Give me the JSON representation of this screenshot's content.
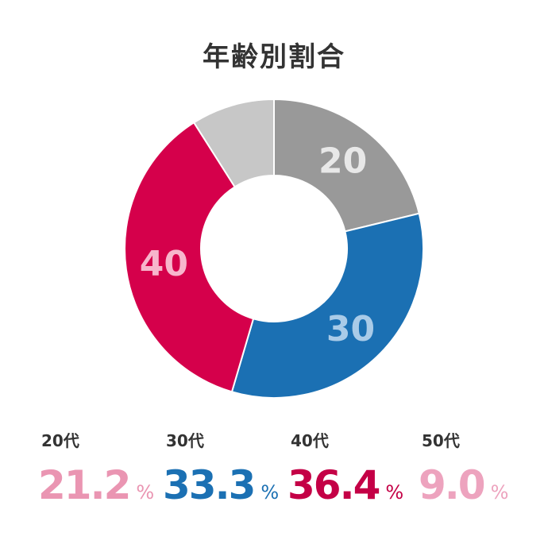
{
  "chart_data": {
    "type": "pie",
    "title": "年齢別割合",
    "donut": true,
    "categories": [
      "20代",
      "30代",
      "40代",
      "50代"
    ],
    "values": [
      21.2,
      33.3,
      36.4,
      9.0
    ],
    "slice_labels": [
      "20",
      "30",
      "40",
      ""
    ],
    "unit": "%",
    "values_display": [
      "21.2",
      "33.3",
      "36.4",
      "9.0"
    ],
    "slice_colors": [
      "#999999",
      "#1B70B3",
      "#D5004B",
      "#C7C7C7"
    ],
    "label_colors": [
      "#E8E8E8",
      "#A9CBE8",
      "#F7B6CC",
      ""
    ],
    "legend_colors": [
      "#EA95B2",
      "#1B70B3",
      "#C40046",
      "#EDA3BE"
    ]
  }
}
